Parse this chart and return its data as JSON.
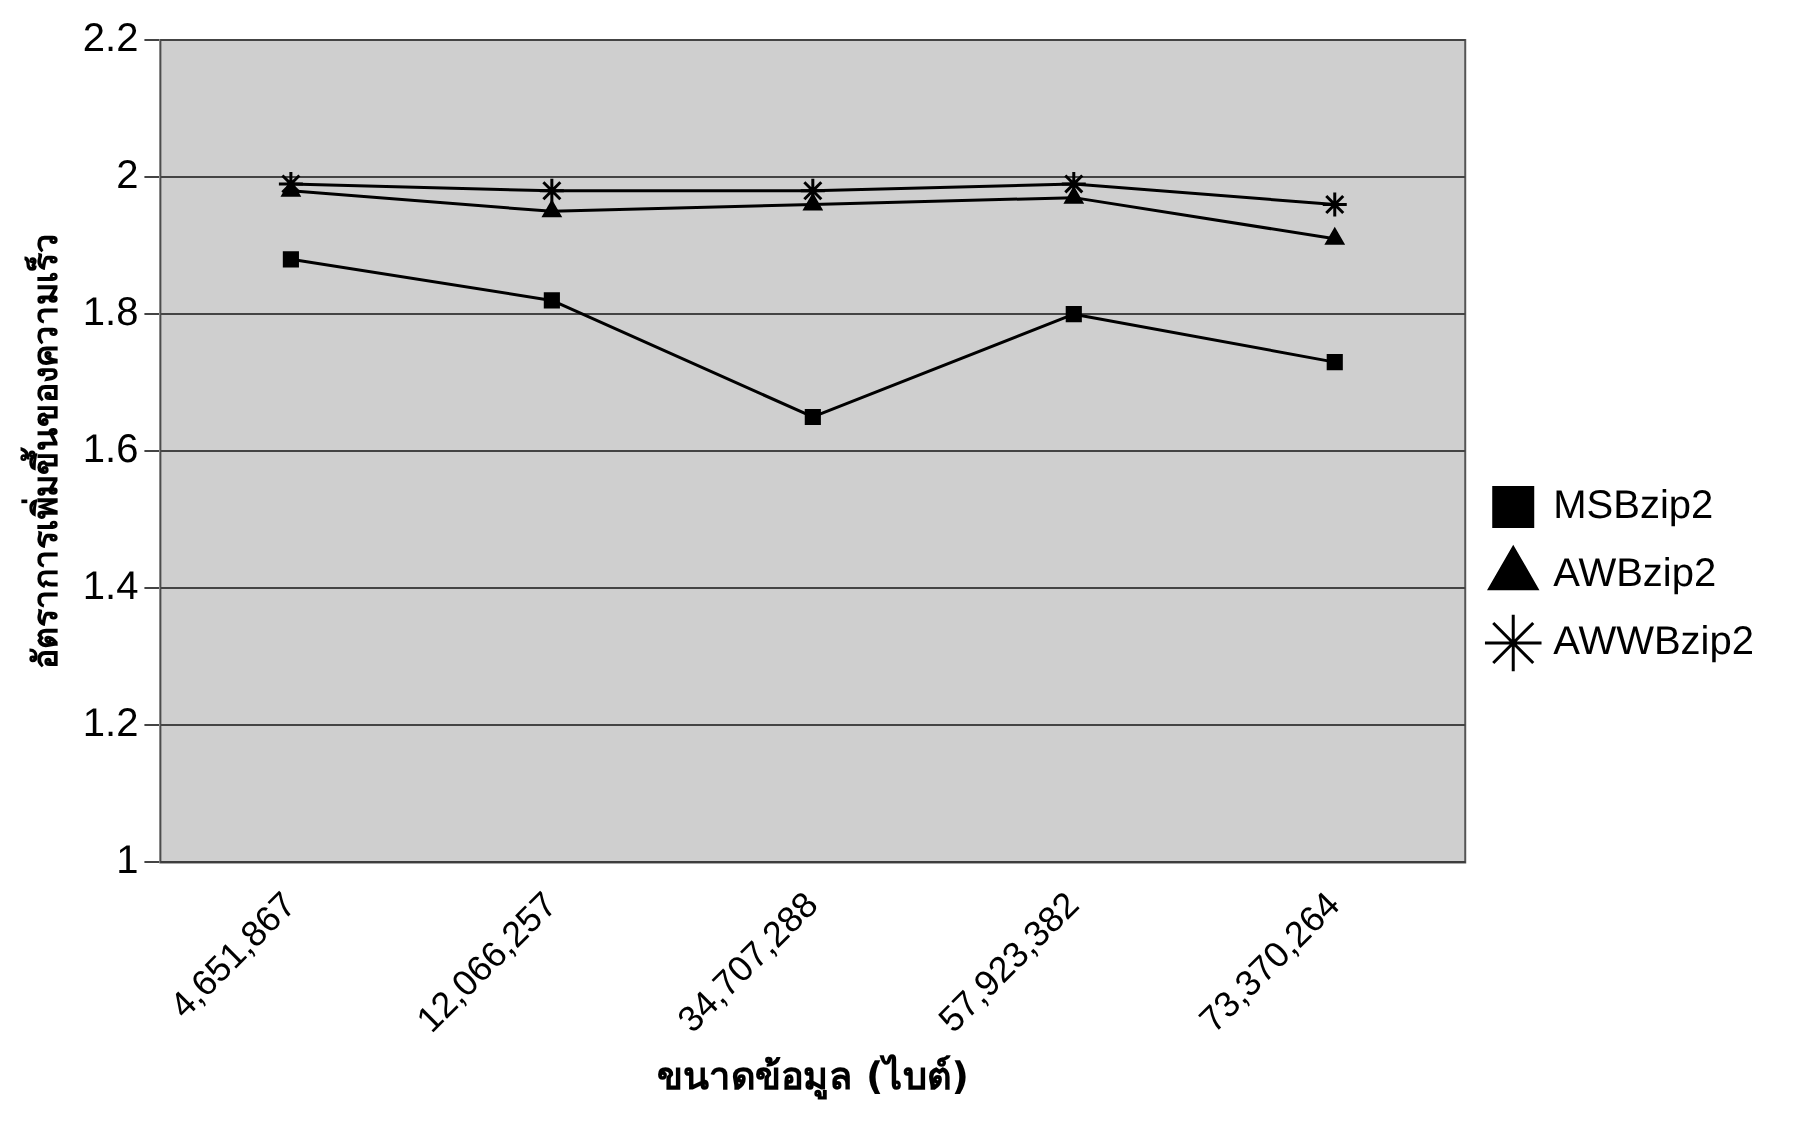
{
  "chart_data": {
    "type": "line",
    "xlabel": "ขนาดข้อมูล (ไบต์)",
    "ylabel": "อัตราการเพิ่มขึ้นของความเร็ว",
    "categories": [
      "4,651,867",
      "12,066,257",
      "34,707,288",
      "57,923,382",
      "73,370,264"
    ],
    "series": [
      {
        "name": "MSBzip2",
        "color": "#000000",
        "marker": "square",
        "values": [
          1.88,
          1.82,
          1.65,
          1.8,
          1.73
        ]
      },
      {
        "name": "AWBzip2",
        "color": "#000000",
        "marker": "triangle",
        "values": [
          1.98,
          1.95,
          1.96,
          1.97,
          1.91
        ]
      },
      {
        "name": "AWWBzip2",
        "color": "#000000",
        "marker": "cross",
        "values": [
          1.99,
          1.98,
          1.98,
          1.99,
          1.96
        ]
      }
    ],
    "ylim": [
      1,
      2.2
    ],
    "yticks": [
      1,
      1.2,
      1.4,
      1.6,
      1.8,
      2,
      2.2
    ],
    "grid": "y",
    "legend": "right",
    "line_style": "solid"
  }
}
